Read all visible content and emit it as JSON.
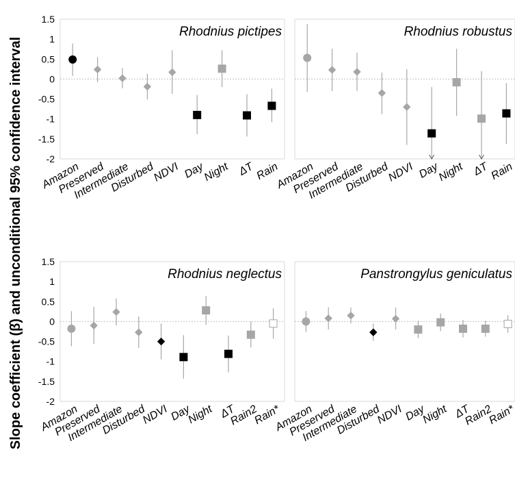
{
  "figure": {
    "ylabel": "Slope coefficient (β̂) and unconditional 95% confidence interval"
  },
  "colors": {
    "black": "#000000",
    "gray": "#a6a6a6",
    "errorbar": "#a6a6a6",
    "zero_line": "#bfbfbf",
    "frame": "#d9d9d9"
  },
  "chart_data": [
    {
      "type": "scatter",
      "title": "Rhodnius pictipes",
      "ylim": [
        -2,
        1.5
      ],
      "yticks": [
        "1.5",
        "1",
        "0.5",
        "0",
        "-0.5",
        "-1",
        "-1.5",
        "-2"
      ],
      "categories": [
        "Amazon",
        "Preserved",
        "Intermediate",
        "Disturbed",
        "NDVI",
        "Day",
        "Night",
        "ΔT",
        "Rain"
      ],
      "points": [
        {
          "category": "Amazon",
          "value": 0.49,
          "lower": 0.08,
          "upper": 0.89,
          "marker": "circle",
          "color": "black"
        },
        {
          "category": "Preserved",
          "value": 0.24,
          "lower": -0.08,
          "upper": 0.55,
          "marker": "diamond",
          "color": "gray"
        },
        {
          "category": "Intermediate",
          "value": 0.02,
          "lower": -0.23,
          "upper": 0.28,
          "marker": "diamond",
          "color": "gray"
        },
        {
          "category": "Disturbed",
          "value": -0.19,
          "lower": -0.51,
          "upper": 0.13,
          "marker": "diamond",
          "color": "gray"
        },
        {
          "category": "NDVI",
          "value": 0.17,
          "lower": -0.37,
          "upper": 0.72,
          "marker": "diamond",
          "color": "gray"
        },
        {
          "category": "Day",
          "value": -0.9,
          "lower": -1.38,
          "upper": -0.4,
          "marker": "square",
          "color": "black"
        },
        {
          "category": "Night",
          "value": 0.26,
          "lower": -0.2,
          "upper": 0.72,
          "marker": "square",
          "color": "gray"
        },
        {
          "category": "ΔT",
          "value": -0.91,
          "lower": -1.44,
          "upper": -0.38,
          "marker": "square",
          "color": "black"
        },
        {
          "category": "Rain",
          "value": -0.67,
          "lower": -1.08,
          "upper": -0.24,
          "marker": "square",
          "color": "black"
        }
      ]
    },
    {
      "type": "scatter",
      "title": "Rhodnius robustus",
      "ylim": [
        -2,
        1.5
      ],
      "categories": [
        "Amazon",
        "Preserved",
        "Intermediate",
        "Disturbed",
        "NDVI",
        "Day",
        "Night",
        "ΔT",
        "Rain"
      ],
      "points": [
        {
          "category": "Amazon",
          "value": 0.53,
          "lower": -0.32,
          "upper": 1.38,
          "marker": "circle",
          "color": "gray"
        },
        {
          "category": "Preserved",
          "value": 0.23,
          "lower": -0.3,
          "upper": 0.76,
          "marker": "diamond",
          "color": "gray"
        },
        {
          "category": "Intermediate",
          "value": 0.18,
          "lower": -0.3,
          "upper": 0.66,
          "marker": "diamond",
          "color": "gray"
        },
        {
          "category": "Disturbed",
          "value": -0.35,
          "lower": -0.88,
          "upper": 0.16,
          "marker": "diamond",
          "color": "gray"
        },
        {
          "category": "NDVI",
          "value": -0.7,
          "lower": -1.65,
          "upper": 0.25,
          "marker": "diamond",
          "color": "gray"
        },
        {
          "category": "Day",
          "value": -1.36,
          "lower": -2.0,
          "upper": -0.2,
          "marker": "square",
          "color": "black",
          "arrow": true
        },
        {
          "category": "Night",
          "value": -0.08,
          "lower": -0.92,
          "upper": 0.76,
          "marker": "square",
          "color": "gray"
        },
        {
          "category": "ΔT",
          "value": -0.99,
          "lower": -2.0,
          "upper": 0.2,
          "marker": "square",
          "color": "gray",
          "arrow": true
        },
        {
          "category": "Rain",
          "value": -0.86,
          "lower": -1.63,
          "upper": -0.1,
          "marker": "square",
          "color": "black"
        }
      ]
    },
    {
      "type": "scatter",
      "title": "Rhodnius neglectus",
      "ylim": [
        -2,
        1.5
      ],
      "yticks": [
        "1.5",
        "1",
        "0.5",
        "0",
        "-0.5",
        "-1",
        "-1.5",
        "-2"
      ],
      "categories": [
        "Amazon",
        "Preserved",
        "Intermediate",
        "Disturbed",
        "NDVI",
        "Day",
        "Night",
        "ΔT",
        "Rain2",
        "Rain*"
      ],
      "points": [
        {
          "category": "Amazon",
          "value": -0.18,
          "lower": -0.62,
          "upper": 0.26,
          "marker": "circle",
          "color": "gray"
        },
        {
          "category": "Preserved",
          "value": -0.1,
          "lower": -0.56,
          "upper": 0.37,
          "marker": "diamond",
          "color": "gray"
        },
        {
          "category": "Intermediate",
          "value": 0.24,
          "lower": -0.1,
          "upper": 0.58,
          "marker": "diamond",
          "color": "gray"
        },
        {
          "category": "Disturbed",
          "value": -0.27,
          "lower": -0.66,
          "upper": 0.13,
          "marker": "diamond",
          "color": "gray"
        },
        {
          "category": "NDVI",
          "value": -0.5,
          "lower": -0.95,
          "upper": -0.05,
          "marker": "diamond",
          "color": "black"
        },
        {
          "category": "Day",
          "value": -0.89,
          "lower": -1.43,
          "upper": -0.34,
          "marker": "square",
          "color": "black"
        },
        {
          "category": "Night",
          "value": 0.28,
          "lower": -0.08,
          "upper": 0.64,
          "marker": "square",
          "color": "gray"
        },
        {
          "category": "ΔT",
          "value": -0.81,
          "lower": -1.27,
          "upper": -0.35,
          "marker": "square",
          "color": "black"
        },
        {
          "category": "Rain2",
          "value": -0.33,
          "lower": -0.65,
          "upper": 0.0,
          "marker": "square",
          "color": "gray"
        },
        {
          "category": "Rain*",
          "value": -0.05,
          "lower": -0.43,
          "upper": 0.33,
          "marker": "square",
          "color": "white"
        }
      ]
    },
    {
      "type": "scatter",
      "title": "Panstrongylus geniculatus",
      "ylim": [
        -2,
        1.5
      ],
      "categories": [
        "Amazon",
        "Preserved",
        "Intermediate",
        "Disturbed",
        "NDVI",
        "Day",
        "Night",
        "ΔT",
        "Rain2",
        "Rain*"
      ],
      "points": [
        {
          "category": "Amazon",
          "value": 0.0,
          "lower": -0.26,
          "upper": 0.26,
          "marker": "circle",
          "color": "gray"
        },
        {
          "category": "Preserved",
          "value": 0.08,
          "lower": -0.2,
          "upper": 0.36,
          "marker": "diamond",
          "color": "gray"
        },
        {
          "category": "Intermediate",
          "value": 0.15,
          "lower": -0.05,
          "upper": 0.35,
          "marker": "diamond",
          "color": "gray"
        },
        {
          "category": "Disturbed",
          "value": -0.27,
          "lower": -0.48,
          "upper": -0.05,
          "marker": "diamond",
          "color": "black"
        },
        {
          "category": "NDVI",
          "value": 0.07,
          "lower": -0.2,
          "upper": 0.35,
          "marker": "diamond",
          "color": "gray"
        },
        {
          "category": "Day",
          "value": -0.2,
          "lower": -0.42,
          "upper": 0.02,
          "marker": "square",
          "color": "gray"
        },
        {
          "category": "Night",
          "value": -0.02,
          "lower": -0.24,
          "upper": 0.2,
          "marker": "square",
          "color": "gray"
        },
        {
          "category": "ΔT",
          "value": -0.18,
          "lower": -0.4,
          "upper": 0.04,
          "marker": "square",
          "color": "gray"
        },
        {
          "category": "Rain2",
          "value": -0.18,
          "lower": -0.38,
          "upper": 0.02,
          "marker": "square",
          "color": "gray"
        },
        {
          "category": "Rain*",
          "value": -0.06,
          "lower": -0.28,
          "upper": 0.16,
          "marker": "square",
          "color": "white"
        }
      ]
    }
  ]
}
